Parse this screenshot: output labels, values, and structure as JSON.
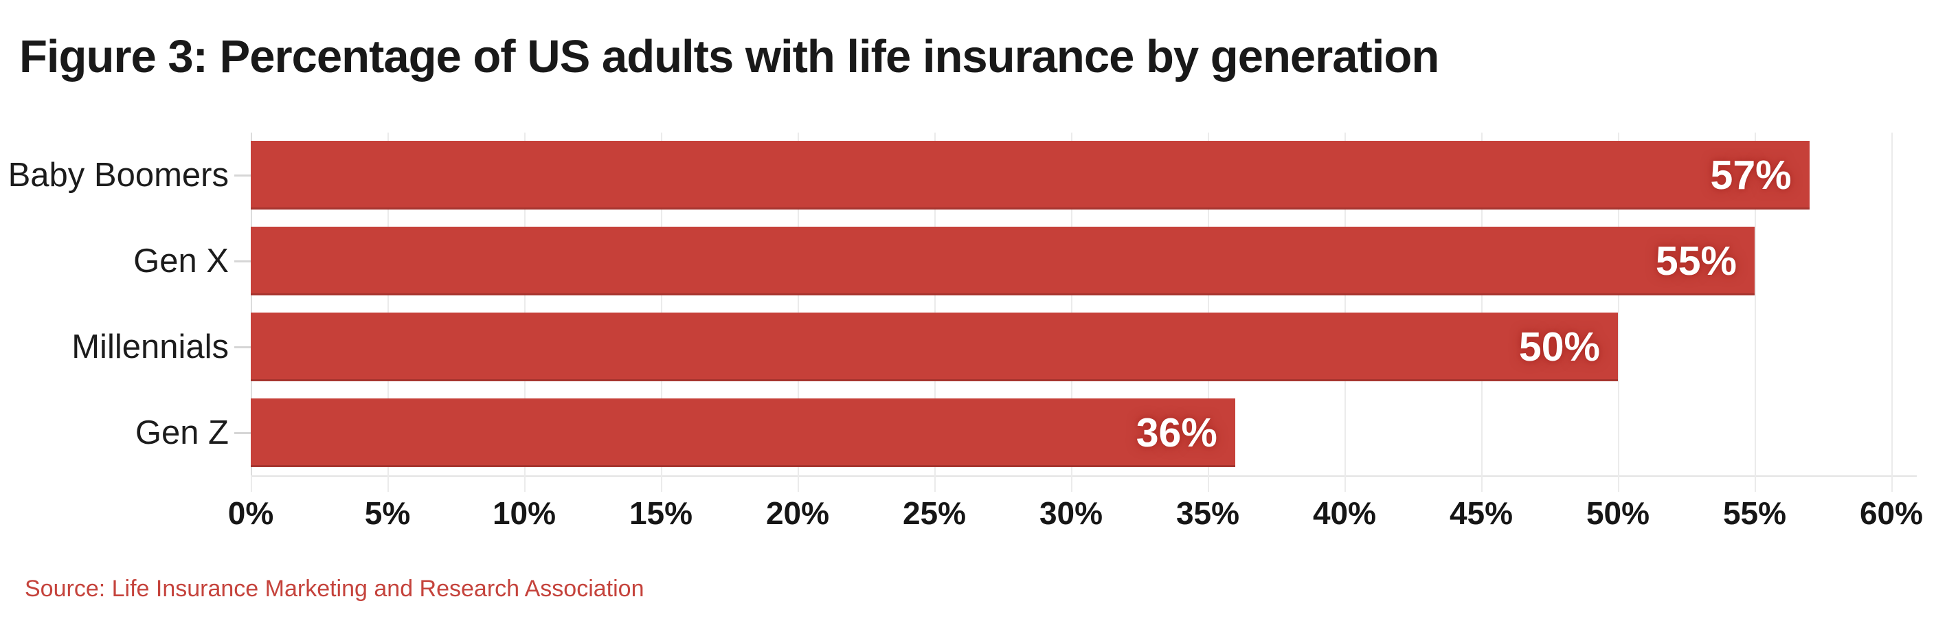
{
  "title": "Figure 3: Percentage of US adults with life insurance by generation",
  "source": "Source: Life Insurance Marketing and Research Association",
  "chart_data": {
    "type": "bar",
    "orientation": "horizontal",
    "title": "Figure 3: Percentage of US adults with life insurance by generation",
    "xlabel": "",
    "ylabel": "",
    "categories": [
      "Baby Boomers",
      "Gen X",
      "Millennials",
      "Gen Z"
    ],
    "values": [
      57,
      55,
      50,
      36
    ],
    "value_labels": [
      "57%",
      "55%",
      "50%",
      "36%"
    ],
    "x_ticks": [
      "0%",
      "5%",
      "10%",
      "15%",
      "20%",
      "25%",
      "30%",
      "35%",
      "40%",
      "45%",
      "50%",
      "55%",
      "60%"
    ],
    "x_tick_values": [
      0,
      5,
      10,
      15,
      20,
      25,
      30,
      35,
      40,
      45,
      50,
      55,
      60
    ],
    "xlim": [
      0,
      60
    ],
    "grid": "vertical",
    "legend": "none",
    "bar_color": "#c64039",
    "value_label_color": "#ffffff",
    "gridline_color": "#ebebeb",
    "source_color": "#c5433c",
    "title_color": "#191919"
  }
}
